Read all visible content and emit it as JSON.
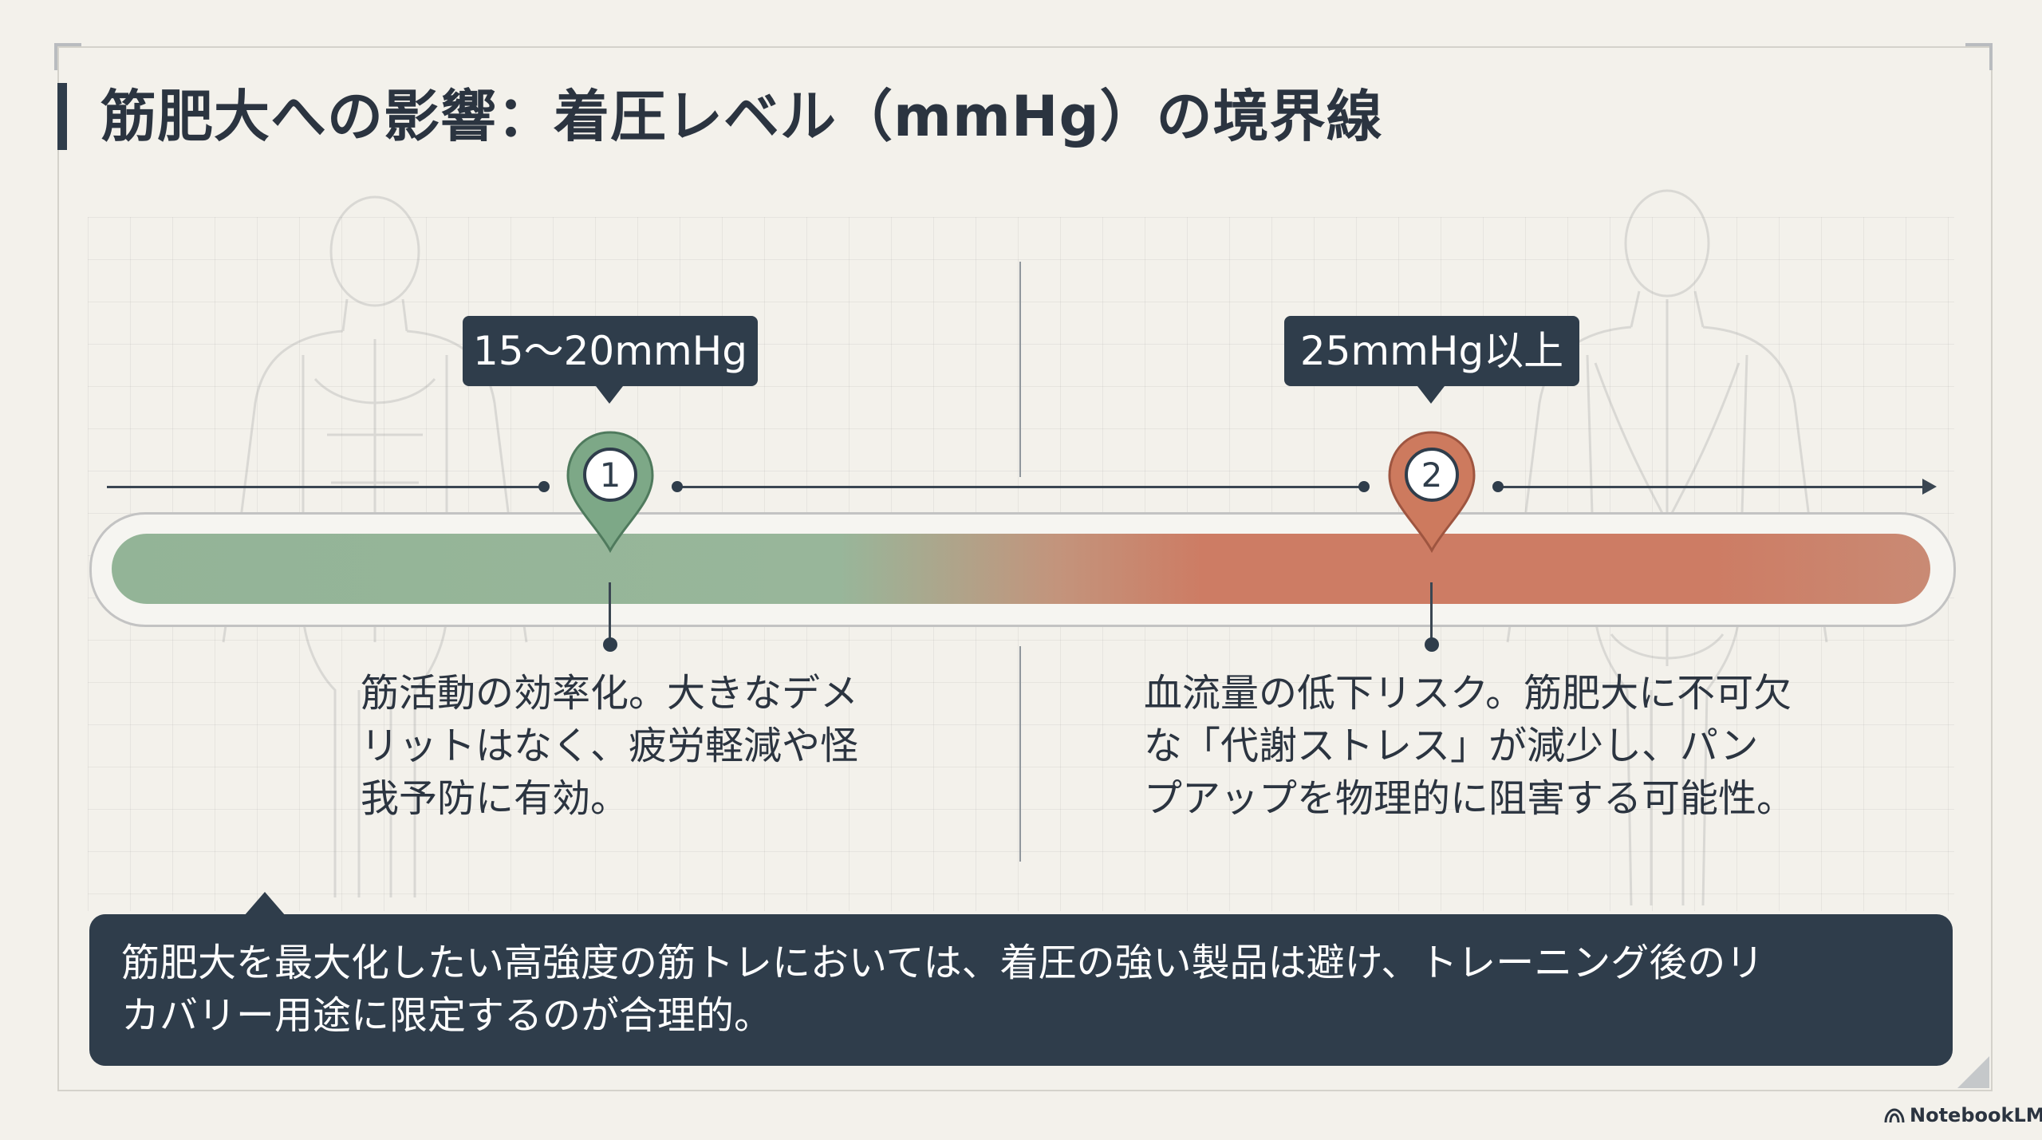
{
  "slide": {
    "title": "筋肥大への影響：着圧レベル（mmHg）の境界線"
  },
  "scale": {
    "low_color": "#93b497",
    "high_color": "#cd7c64"
  },
  "markers": [
    {
      "number": "1",
      "label": "15～20mmHg",
      "color": "#7da887",
      "description_lines": [
        "筋活動の効率化。大きなデメ",
        "リットはなく、疲労軽減や怪",
        "我予防に有効。"
      ]
    },
    {
      "number": "2",
      "label": "25mmHg以上",
      "color": "#cd7a5e",
      "description_lines": [
        "血流量の低下リスク。筋肥大に不可欠",
        "な「代謝ストレス」が減少し、パン",
        "プアップを物理的に阻害する可能性。"
      ]
    }
  ],
  "conclusion": {
    "lines": [
      "筋肥大を最大化したい高強度の筋トレにおいては、着圧の強い製品は避け、トレーニング後のリ",
      "カバリー用途に限定するのが合理的。"
    ]
  },
  "brand": {
    "name": "NotebookLM",
    "icon": "notebooklm-logo-icon"
  }
}
